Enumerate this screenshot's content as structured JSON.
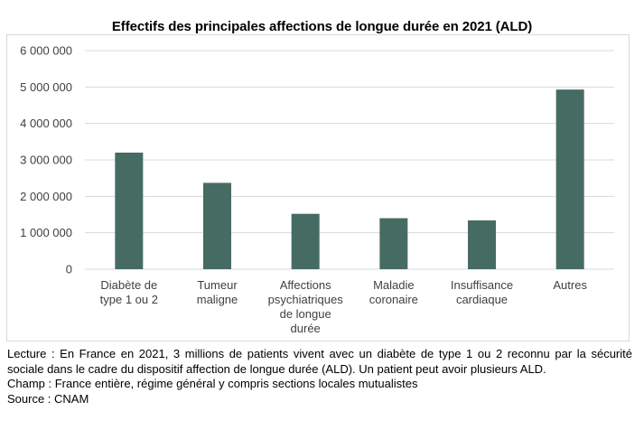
{
  "chart_data": {
    "type": "bar",
    "title": "Effectifs des principales affections de longue durée en 2021 (ALD)",
    "categories": [
      [
        "Diabète de",
        "type 1 ou 2"
      ],
      [
        "Tumeur",
        "maligne"
      ],
      [
        "Affections",
        "psychiatriques",
        "de longue",
        "durée"
      ],
      [
        "Maladie",
        "coronaire"
      ],
      [
        "Insuffisance",
        "cardiaque"
      ],
      [
        "Autres"
      ]
    ],
    "values": [
      3200000,
      2370000,
      1520000,
      1400000,
      1340000,
      4930000
    ],
    "ylim": [
      0,
      6000000
    ],
    "yticks": [
      0,
      1000000,
      2000000,
      3000000,
      4000000,
      5000000,
      6000000
    ],
    "ytick_labels": [
      "0",
      "1 000 000",
      "2 000 000",
      "3 000 000",
      "4 000 000",
      "5 000 000",
      "6 000 000"
    ],
    "xlabel": "",
    "ylabel": "",
    "grid": true,
    "bar_color": "#466b63",
    "grid_color": "#d9d9d9"
  },
  "notes": {
    "lecture": "Lecture : En France en 2021, 3 millions de patients vivent avec un diabète de type 1 ou 2 reconnu par la sécurité sociale dans le cadre du dispositif affection de longue durée (ALD). Un patient peut avoir plusieurs ALD.",
    "champ": "Champ : France entière, régime général y compris sections locales mutualistes",
    "source": "Source : CNAM"
  }
}
